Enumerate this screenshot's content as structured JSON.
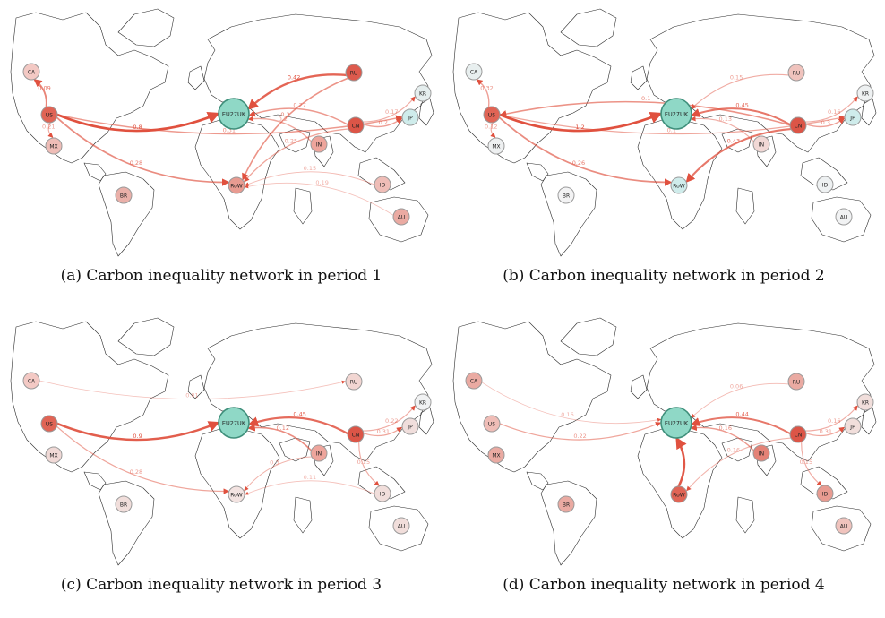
{
  "panels": [
    {
      "caption": "(a) Carbon inequality network in period 1",
      "nodes": {
        "CA": "#f3c9c4",
        "US": "#e06455",
        "MX": "#efbdb7",
        "BR": "#eab0a9",
        "EU27UK": "#8fd8c6",
        "RU": "#dd5a4d",
        "KR": "#e5eeee",
        "JP": "#cfeceb",
        "IN": "#eea59c",
        "CN": "#dc5547",
        "RoW": "#e89b91",
        "ID": "#efbdb7",
        "AU": "#eaaaa2"
      },
      "edges": [
        {
          "from": "US",
          "to": "CA",
          "w": 0.6,
          "label": "0.09"
        },
        {
          "from": "US",
          "to": "EU27UK",
          "w": 1.0,
          "label": "0.8"
        },
        {
          "from": "US",
          "to": "RoW",
          "w": 0.55,
          "label": "0.28"
        },
        {
          "from": "US",
          "to": "JP",
          "w": 0.45,
          "label": "0.31"
        },
        {
          "from": "US",
          "to": "MX",
          "w": 0.3,
          "label": "0.21"
        },
        {
          "from": "RU",
          "to": "EU27UK",
          "w": 0.85,
          "label": "0.42"
        },
        {
          "from": "RU",
          "to": "RoW",
          "w": 0.5,
          "label": "0.2"
        },
        {
          "from": "CN",
          "to": "EU27UK",
          "w": 0.45,
          "label": "0.27"
        },
        {
          "from": "CN",
          "to": "JP",
          "w": 0.4,
          "label": "0.2"
        },
        {
          "from": "CN",
          "to": "KR",
          "w": 0.3,
          "label": "0.17"
        },
        {
          "from": "IN",
          "to": "EU27UK",
          "w": 0.35,
          "label": "0.2"
        },
        {
          "from": "CN",
          "to": "RoW",
          "w": 0.35,
          "label": "0.25"
        },
        {
          "from": "ID",
          "to": "RoW",
          "w": 0.2,
          "label": "0.15"
        },
        {
          "from": "AU",
          "to": "RoW",
          "w": 0.15,
          "label": "0.19"
        }
      ]
    },
    {
      "caption": "(b) Carbon inequality network in period 2",
      "nodes": {
        "CA": "#e8efef",
        "US": "#e06455",
        "MX": "#eef0f1",
        "BR": "#f3f3f4",
        "EU27UK": "#8fd8c6",
        "RU": "#f0c3bd",
        "KR": "#eef1f2",
        "JP": "#cfeceb",
        "IN": "#f1d8d5",
        "CN": "#dc5547",
        "RoW": "#cfeceb",
        "ID": "#eef1f2",
        "AU": "#f1f2f3"
      },
      "edges": [
        {
          "from": "US",
          "to": "CA",
          "w": 0.4,
          "label": "0.32"
        },
        {
          "from": "US",
          "to": "EU27UK",
          "w": 1.0,
          "label": "1.2"
        },
        {
          "from": "US",
          "to": "RoW",
          "w": 0.55,
          "label": "0.26"
        },
        {
          "from": "US",
          "to": "JP",
          "w": 0.35,
          "label": "0.1"
        },
        {
          "from": "US",
          "to": "MX",
          "w": 0.3,
          "label": "0.12"
        },
        {
          "from": "CN",
          "to": "EU27UK",
          "w": 0.7,
          "label": "0.45"
        },
        {
          "from": "CN",
          "to": "RoW",
          "w": 0.7,
          "label": "0.43"
        },
        {
          "from": "CN",
          "to": "US",
          "w": 0.5,
          "label": "0.1"
        },
        {
          "from": "CN",
          "to": "JP",
          "w": 0.4,
          "label": "0.3"
        },
        {
          "from": "CN",
          "to": "KR",
          "w": 0.3,
          "label": "0.16"
        },
        {
          "from": "IN",
          "to": "EU27UK",
          "w": 0.3,
          "label": "0.13"
        },
        {
          "from": "RU",
          "to": "EU27UK",
          "w": 0.3,
          "label": "0.15"
        }
      ]
    },
    {
      "caption": "(c) Carbon inequality network in period 3",
      "nodes": {
        "CA": "#f3c9c4",
        "US": "#e06455",
        "MX": "#f0d9d6",
        "BR": "#f1dedb",
        "EU27UK": "#8fd8c6",
        "RU": "#f2d6d2",
        "KR": "#f1f2f3",
        "JP": "#f0dedc",
        "IN": "#eea59c",
        "CN": "#dc5547",
        "RoW": "#f3e3e1",
        "ID": "#f1dedb",
        "AU": "#f1dedb"
      },
      "edges": [
        {
          "from": "US",
          "to": "EU27UK",
          "w": 0.9,
          "label": "0.9"
        },
        {
          "from": "US",
          "to": "RoW",
          "w": 0.35,
          "label": "0.28"
        },
        {
          "from": "CN",
          "to": "EU27UK",
          "w": 0.8,
          "label": "0.45"
        },
        {
          "from": "IN",
          "to": "EU27UK",
          "w": 0.55,
          "label": "0.12"
        },
        {
          "from": "CN",
          "to": "JP",
          "w": 0.35,
          "label": "0.31"
        },
        {
          "from": "CN",
          "to": "KR",
          "w": 0.3,
          "label": "0.22"
        },
        {
          "from": "CN",
          "to": "ID",
          "w": 0.3,
          "label": "0.15"
        },
        {
          "from": "IN",
          "to": "RoW",
          "w": 0.25,
          "label": "0.3"
        },
        {
          "from": "CA",
          "to": "RU",
          "w": 0.15,
          "label": "0.01"
        },
        {
          "from": "ID",
          "to": "RoW",
          "w": 0.15,
          "label": "0.11"
        }
      ]
    },
    {
      "caption": "(d) Carbon inequality network in period 4",
      "nodes": {
        "CA": "#eaaaa2",
        "US": "#efbdb7",
        "MX": "#eaaaa2",
        "BR": "#eaaaa2",
        "EU27UK": "#8fd8c6",
        "RU": "#eaaaa2",
        "KR": "#f1dedb",
        "JP": "#f1dedb",
        "IN": "#e48276",
        "CN": "#dc5547",
        "RoW": "#e06455",
        "ID": "#e89b91",
        "AU": "#f0c3bd"
      },
      "edges": [
        {
          "from": "RoW",
          "to": "EU27UK",
          "w": 0.95,
          "label": ""
        },
        {
          "from": "CN",
          "to": "EU27UK",
          "w": 0.7,
          "label": "0.44"
        },
        {
          "from": "IN",
          "to": "EU27UK",
          "w": 0.45,
          "label": "0.16"
        },
        {
          "from": "US",
          "to": "EU27UK",
          "w": 0.35,
          "label": "0.22"
        },
        {
          "from": "CN",
          "to": "JP",
          "w": 0.35,
          "label": "0.31"
        },
        {
          "from": "CN",
          "to": "KR",
          "w": 0.3,
          "label": "0.16"
        },
        {
          "from": "CN",
          "to": "ID",
          "w": 0.3,
          "label": "0.15"
        },
        {
          "from": "CN",
          "to": "RoW",
          "w": 0.25,
          "label": "0.16"
        },
        {
          "from": "RU",
          "to": "EU27UK",
          "w": 0.2,
          "label": "0.06"
        },
        {
          "from": "CA",
          "to": "EU27UK",
          "w": 0.15,
          "label": "0.16"
        }
      ]
    }
  ],
  "colors": {
    "edge": "#e0513f",
    "node_stroke": "#9a9a9a",
    "coast": "#2b2b2b"
  }
}
